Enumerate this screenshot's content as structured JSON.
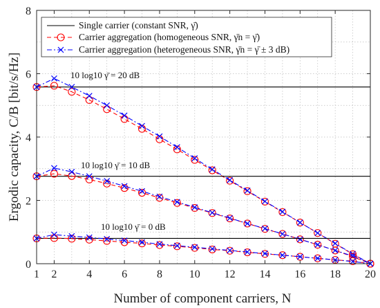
{
  "chart_data": {
    "type": "line",
    "xlabel": "Number of component carriers, N",
    "ylabel": "Ergodic capacity, C/B [bit/s/Hz]",
    "xlim": [
      1,
      20
    ],
    "ylim": [
      0,
      8
    ],
    "grid": true,
    "x_ticks": [
      "1",
      "2",
      "4",
      "6",
      "8",
      "10",
      "12",
      "14",
      "16",
      "18",
      "20"
    ],
    "y_ticks": [
      "0",
      "2",
      "4",
      "6",
      "8"
    ],
    "legend_position": "top",
    "legend": [
      "Single carrier (constant SNR, γ̄)",
      "Carrier aggregation (homogeneous SNR, γ̄n = γ̄)",
      "Carrier aggregation (heterogeneous SNR, γ̄n = γ̄ ± 3 dB)"
    ],
    "annotations": [
      "10 log10 γ̄ = 20 dB",
      "10 log10 γ̄ = 10 dB",
      "10 log10 γ̄ = 0 dB"
    ],
    "x": [
      1,
      2,
      3,
      4,
      5,
      6,
      7,
      8,
      9,
      10,
      11,
      12,
      13,
      14,
      15,
      16,
      17,
      18,
      19,
      20
    ],
    "groups": [
      {
        "snr": "20 dB",
        "single_carrier": 5.58,
        "homogeneous": [
          5.58,
          5.62,
          5.43,
          5.17,
          4.88,
          4.57,
          4.26,
          3.93,
          3.61,
          3.28,
          2.95,
          2.62,
          2.29,
          1.96,
          1.63,
          1.3,
          0.97,
          0.63,
          0.3,
          0.0
        ],
        "heterogeneous": [
          5.58,
          5.85,
          5.58,
          5.3,
          5.0,
          4.68,
          4.35,
          4.02,
          3.68,
          3.33,
          2.98,
          2.64,
          2.31,
          1.97,
          1.64,
          1.3,
          0.97,
          0.64,
          0.31,
          0.0
        ]
      },
      {
        "snr": "10 dB",
        "single_carrier": 2.76,
        "homogeneous": [
          2.76,
          2.84,
          2.77,
          2.66,
          2.53,
          2.39,
          2.24,
          2.08,
          1.92,
          1.76,
          1.6,
          1.43,
          1.27,
          1.1,
          0.94,
          0.77,
          0.6,
          0.42,
          0.22,
          0.0
        ],
        "heterogeneous": [
          2.76,
          3.02,
          2.9,
          2.76,
          2.61,
          2.45,
          2.29,
          2.12,
          1.95,
          1.78,
          1.61,
          1.44,
          1.27,
          1.11,
          0.94,
          0.77,
          0.6,
          0.42,
          0.24,
          0.0
        ]
      },
      {
        "snr": "0 dB",
        "single_carrier": 0.8,
        "homogeneous": [
          0.8,
          0.81,
          0.79,
          0.76,
          0.72,
          0.68,
          0.64,
          0.59,
          0.55,
          0.5,
          0.45,
          0.41,
          0.36,
          0.31,
          0.27,
          0.22,
          0.17,
          0.12,
          0.08,
          0.0
        ],
        "heterogeneous": [
          0.8,
          0.92,
          0.87,
          0.83,
          0.78,
          0.73,
          0.68,
          0.62,
          0.57,
          0.52,
          0.47,
          0.42,
          0.37,
          0.32,
          0.27,
          0.22,
          0.17,
          0.12,
          0.07,
          0.0
        ]
      }
    ],
    "colors": {
      "single_carrier": "#000000",
      "homogeneous": "#ff0000",
      "heterogeneous": "#0000ff",
      "grid": "#bdbdbd",
      "axis": "#262626"
    }
  }
}
